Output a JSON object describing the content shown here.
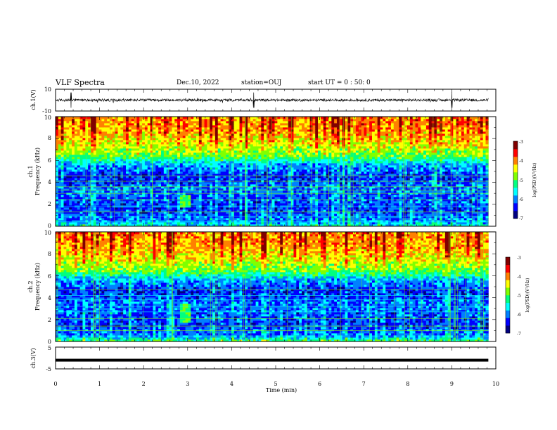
{
  "header": {
    "title": "VLF Spectra",
    "date": "Dec.10, 2022",
    "station": "station=OUJ",
    "start": "start UT =  0 : 50: 0"
  },
  "chart_data": [
    {
      "type": "line",
      "panel": "ch1-waveform",
      "ylabel": "ch.1(V)",
      "ylim": [
        -10,
        10
      ],
      "y_ticks": [
        "10",
        "-10"
      ],
      "xlim": [
        0,
        10
      ],
      "data_end_min": 9.83,
      "baseline": 0,
      "description_values": {
        "typical_amplitude_V": 1.2,
        "spike_times_min": [
          0.35,
          4.5,
          9.0
        ]
      }
    },
    {
      "type": "heatmap",
      "panel": "ch1-spectrogram",
      "ylabel_top": "ch.1",
      "ylabel": "Frequency (kHz)",
      "ylim": [
        0,
        10
      ],
      "y_ticks": [
        "0",
        "2",
        "4",
        "6",
        "8",
        "10"
      ],
      "xlim": [
        0,
        10
      ],
      "data_end_min": 9.83,
      "colorbar": {
        "label": "log(PSD)(V²/Hz)",
        "range": [
          -7,
          -3
        ],
        "ticks": [
          "-3",
          "-4",
          "-5",
          "-6",
          "-7"
        ]
      },
      "log_psd_profile": [
        {
          "f_khz": 0.0,
          "v": -5.6
        },
        {
          "f_khz": 0.5,
          "v": -6.0
        },
        {
          "f_khz": 1.5,
          "v": -6.3
        },
        {
          "f_khz": 2.5,
          "v": -6.2
        },
        {
          "f_khz": 3.5,
          "v": -6.1
        },
        {
          "f_khz": 4.5,
          "v": -6.4
        },
        {
          "f_khz": 5.5,
          "v": -6.0
        },
        {
          "f_khz": 6.5,
          "v": -4.9
        },
        {
          "f_khz": 7.5,
          "v": -4.5
        },
        {
          "f_khz": 8.5,
          "v": -4.2
        },
        {
          "f_khz": 9.5,
          "v": -4.1
        }
      ],
      "line_frequencies_khz": [
        0.4,
        0.9,
        1.3,
        1.8,
        2.4,
        3.0,
        3.3,
        3.6,
        4.1,
        4.6
      ],
      "feature": {
        "time_min": 2.92,
        "f_range_khz": [
          1.8,
          2.8
        ],
        "log_psd": -5.0
      }
    },
    {
      "type": "heatmap",
      "panel": "ch2-spectrogram",
      "ylabel_top": "ch.2",
      "ylabel": "Frequency (kHz)",
      "ylim": [
        0,
        10
      ],
      "y_ticks": [
        "0",
        "2",
        "4",
        "6",
        "8",
        "10"
      ],
      "xlim": [
        0,
        10
      ],
      "data_end_min": 9.83,
      "colorbar": {
        "label": "log(PSD)(V²/Hz)",
        "range": [
          -7,
          -3
        ],
        "ticks": [
          "-3",
          "-4",
          "-5",
          "-6",
          "-7"
        ]
      },
      "log_psd_profile": [
        {
          "f_khz": 0.0,
          "v": -5.0
        },
        {
          "f_khz": 0.5,
          "v": -6.0
        },
        {
          "f_khz": 1.5,
          "v": -6.3
        },
        {
          "f_khz": 2.5,
          "v": -6.2
        },
        {
          "f_khz": 3.5,
          "v": -6.1
        },
        {
          "f_khz": 4.5,
          "v": -6.4
        },
        {
          "f_khz": 5.5,
          "v": -6.0
        },
        {
          "f_khz": 6.5,
          "v": -4.9
        },
        {
          "f_khz": 7.5,
          "v": -4.5
        },
        {
          "f_khz": 8.5,
          "v": -4.2
        },
        {
          "f_khz": 9.5,
          "v": -4.1
        }
      ],
      "line_frequencies_khz": [
        0.5,
        1.0,
        1.4,
        2.1,
        2.7,
        3.2,
        3.8,
        4.2,
        4.7
      ],
      "feature": {
        "time_min": 2.92,
        "f_range_khz": [
          1.8,
          3.5
        ],
        "log_psd": -5.0
      }
    },
    {
      "type": "line",
      "panel": "ch3-waveform",
      "ylabel": "ch.3(V)",
      "ylim": [
        -5,
        5
      ],
      "y_ticks": [
        "5",
        "-5"
      ],
      "xlim": [
        0,
        10
      ],
      "data_end_min": 9.83,
      "level_V": -1.0
    }
  ],
  "x_axis": {
    "xlabel": "Time (min)",
    "ticks": [
      "0",
      "1",
      "2",
      "3",
      "4",
      "5",
      "6",
      "7",
      "8",
      "9",
      "10"
    ]
  },
  "colors": {
    "frame": "#000000",
    "trace": "#000000",
    "cmap": [
      "#000080",
      "#0000ff",
      "#0080ff",
      "#00ffff",
      "#00ff80",
      "#80ff00",
      "#ffff00",
      "#ff8000",
      "#ff0000",
      "#800000"
    ]
  }
}
